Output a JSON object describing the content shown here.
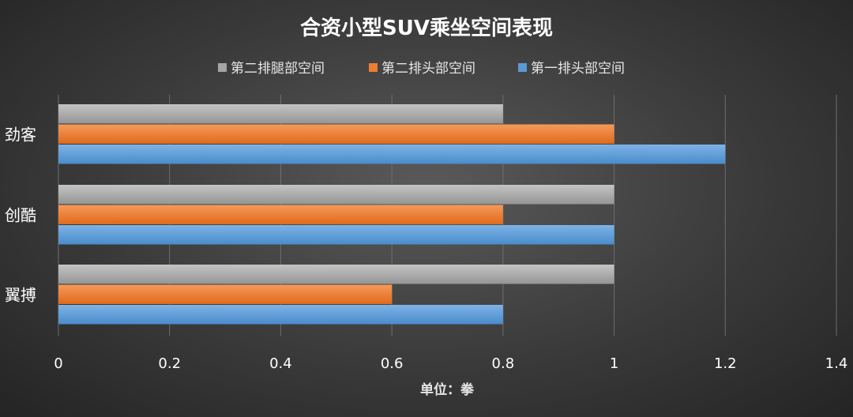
{
  "chart_data": {
    "type": "bar",
    "orientation": "horizontal",
    "title": "合资小型SUV乘坐空间表现",
    "xlabel": "单位：拳",
    "ylabel": "",
    "categories": [
      "劲客",
      "创酷",
      "翼搏"
    ],
    "series": [
      {
        "name": "第二排腿部空间",
        "color": "#a5a5a5",
        "values": [
          0.8,
          1.0,
          1.0
        ]
      },
      {
        "name": "第二排头部空间",
        "color": "#ed7d31",
        "values": [
          1.0,
          0.8,
          0.6
        ]
      },
      {
        "name": "第一排头部空间",
        "color": "#5b9bd5",
        "values": [
          1.2,
          1.0,
          0.8
        ]
      }
    ],
    "xlim": [
      0,
      1.4
    ],
    "ticks": [
      "0",
      "0.2",
      "0.4",
      "0.6",
      "0.8",
      "1",
      "1.2",
      "1.4"
    ],
    "tick_values": [
      0,
      0.2,
      0.4,
      0.6,
      0.8,
      1.0,
      1.2,
      1.4
    ],
    "grid": true,
    "legend_position": "top"
  }
}
